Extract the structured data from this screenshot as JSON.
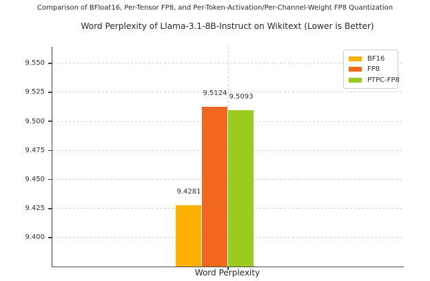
{
  "figure": {
    "suptitle": "Comparison of BFloat16, Per-Tensor FP8, and Per-Token-Activation/Per-Channel-Weight FP8 Quantization"
  },
  "chart_data": {
    "type": "bar",
    "title": "Word Perplexity of Llama-3.1-8B-Instruct on Wikitext (Lower is Better)",
    "xlabel": "Word Perplexity",
    "ylabel": "",
    "categories": [
      "Word Perplexity"
    ],
    "series": [
      {
        "name": "BF16",
        "values": [
          9.4281
        ],
        "color": "#FFB005"
      },
      {
        "name": "FP8",
        "values": [
          9.5124
        ],
        "color": "#F2671E"
      },
      {
        "name": "PTPC-FP8",
        "values": [
          9.5093
        ],
        "color": "#9CCB1F"
      }
    ],
    "bar_value_labels": [
      "9.4281",
      "9.5124",
      "9.5093"
    ],
    "ylim": [
      9.3751,
      9.5641
    ],
    "yticks": [
      9.4,
      9.425,
      9.45,
      9.475,
      9.5,
      9.525,
      9.55
    ],
    "ytick_labels": [
      "9.400",
      "9.425",
      "9.450",
      "9.475",
      "9.500",
      "9.525",
      "9.550"
    ],
    "grid": true,
    "grid_style": "dashed",
    "legend_position": "upper right",
    "legend_entries": [
      "BF16",
      "FP8",
      "PTPC-FP8"
    ]
  },
  "colors": {
    "background": "#ffffff",
    "grid": "#d2d2d2",
    "spine": "#3f3f3f",
    "text": "#2e2e2e",
    "legend_border": "#cccccc"
  }
}
